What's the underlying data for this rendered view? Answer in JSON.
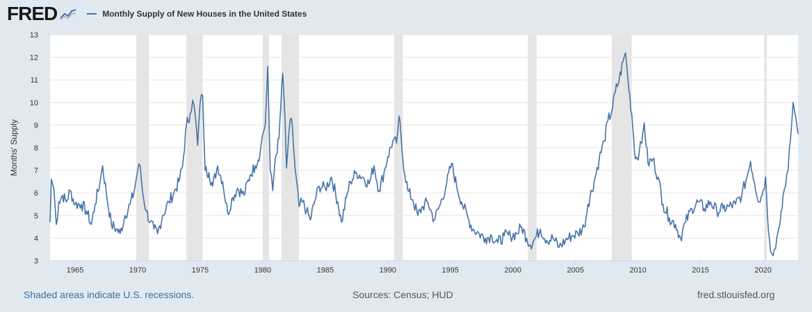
{
  "header": {
    "logo_text": "FRED",
    "logo_icon": "fred-chart-icon"
  },
  "footer": {
    "recession_note": "Shaded areas indicate U.S. recessions.",
    "sources": "Sources: Census; HUD",
    "site": "fred.stlouisfed.org"
  },
  "colors": {
    "line": "#4572a7",
    "recession": "#e5e5e5",
    "background": "#e1e9f0",
    "plot": "#ffffff"
  },
  "chart_data": {
    "type": "line",
    "title": "",
    "series": [
      {
        "name": "Monthly Supply of New Houses in the United States"
      }
    ],
    "ylabel": "Months' Supply",
    "xlabel": "",
    "ylim": [
      3,
      13
    ],
    "xlim": [
      1963.0,
      2022.8
    ],
    "yticks": [
      3,
      4,
      5,
      6,
      7,
      8,
      9,
      10,
      11,
      12,
      13
    ],
    "xticks": [
      1965,
      1970,
      1975,
      1980,
      1985,
      1990,
      1995,
      2000,
      2005,
      2010,
      2015,
      2020
    ],
    "grid": true,
    "recessions": [
      [
        1969.9,
        1970.9
      ],
      [
        1973.9,
        1975.2
      ],
      [
        1980.0,
        1980.5
      ],
      [
        1981.5,
        1982.9
      ],
      [
        1990.5,
        1991.2
      ],
      [
        2001.2,
        2001.9
      ],
      [
        2007.9,
        2009.5
      ],
      [
        2020.1,
        2020.3
      ]
    ],
    "points": [
      [
        1963.0,
        4.7
      ],
      [
        1963.1,
        6.6
      ],
      [
        1963.3,
        6.2
      ],
      [
        1963.5,
        4.6
      ],
      [
        1963.7,
        5.6
      ],
      [
        1964.0,
        5.9
      ],
      [
        1964.3,
        5.6
      ],
      [
        1964.6,
        6.1
      ],
      [
        1965.0,
        5.5
      ],
      [
        1965.5,
        5.5
      ],
      [
        1965.9,
        5.2
      ],
      [
        1966.3,
        4.6
      ],
      [
        1966.6,
        5.5
      ],
      [
        1967.0,
        6.5
      ],
      [
        1967.2,
        7.2
      ],
      [
        1967.5,
        6.0
      ],
      [
        1967.9,
        4.6
      ],
      [
        1968.3,
        4.4
      ],
      [
        1968.6,
        4.2
      ],
      [
        1969.0,
        5.0
      ],
      [
        1969.4,
        5.5
      ],
      [
        1969.7,
        6.0
      ],
      [
        1970.0,
        7.0
      ],
      [
        1970.2,
        7.2
      ],
      [
        1970.4,
        6.0
      ],
      [
        1970.7,
        5.2
      ],
      [
        1971.0,
        4.7
      ],
      [
        1971.3,
        4.4
      ],
      [
        1971.6,
        4.2
      ],
      [
        1972.0,
        5.0
      ],
      [
        1972.5,
        5.6
      ],
      [
        1972.9,
        6.0
      ],
      [
        1973.3,
        6.5
      ],
      [
        1973.6,
        7.2
      ],
      [
        1973.9,
        9.0
      ],
      [
        1974.2,
        9.5
      ],
      [
        1974.4,
        10.1
      ],
      [
        1974.6,
        9.5
      ],
      [
        1974.8,
        8.1
      ],
      [
        1975.0,
        10.0
      ],
      [
        1975.2,
        10.3
      ],
      [
        1975.4,
        7.0
      ],
      [
        1975.7,
        6.9
      ],
      [
        1976.0,
        6.3
      ],
      [
        1976.4,
        7.2
      ],
      [
        1976.8,
        6.5
      ],
      [
        1977.2,
        5.1
      ],
      [
        1977.6,
        5.8
      ],
      [
        1978.0,
        6.2
      ],
      [
        1978.5,
        5.9
      ],
      [
        1979.0,
        6.8
      ],
      [
        1979.4,
        7.2
      ],
      [
        1979.8,
        7.8
      ],
      [
        1980.0,
        8.6
      ],
      [
        1980.2,
        9.0
      ],
      [
        1980.4,
        11.6
      ],
      [
        1980.6,
        7.0
      ],
      [
        1980.8,
        6.1
      ],
      [
        1981.0,
        7.5
      ],
      [
        1981.3,
        8.4
      ],
      [
        1981.6,
        11.3
      ],
      [
        1981.8,
        9.0
      ],
      [
        1981.9,
        7.1
      ],
      [
        1982.1,
        8.7
      ],
      [
        1982.3,
        9.3
      ],
      [
        1982.6,
        7.0
      ],
      [
        1982.9,
        5.4
      ],
      [
        1983.2,
        5.6
      ],
      [
        1983.5,
        5.2
      ],
      [
        1983.8,
        4.8
      ],
      [
        1984.1,
        5.5
      ],
      [
        1984.5,
        6.3
      ],
      [
        1985.0,
        6.2
      ],
      [
        1985.5,
        6.7
      ],
      [
        1986.0,
        5.6
      ],
      [
        1986.3,
        4.7
      ],
      [
        1986.7,
        5.8
      ],
      [
        1987.0,
        6.5
      ],
      [
        1987.5,
        6.9
      ],
      [
        1988.0,
        6.7
      ],
      [
        1988.5,
        6.4
      ],
      [
        1988.9,
        7.2
      ],
      [
        1989.3,
        6.1
      ],
      [
        1989.7,
        6.9
      ],
      [
        1990.0,
        7.6
      ],
      [
        1990.4,
        8.3
      ],
      [
        1990.7,
        8.2
      ],
      [
        1990.9,
        9.4
      ],
      [
        1991.2,
        7.5
      ],
      [
        1991.6,
        6.1
      ],
      [
        1992.0,
        5.7
      ],
      [
        1992.4,
        5.0
      ],
      [
        1992.8,
        5.4
      ],
      [
        1993.2,
        5.6
      ],
      [
        1993.7,
        4.8
      ],
      [
        1994.2,
        5.5
      ],
      [
        1994.7,
        6.4
      ],
      [
        1995.1,
        7.3
      ],
      [
        1995.5,
        6.3
      ],
      [
        1995.9,
        5.6
      ],
      [
        1996.4,
        4.9
      ],
      [
        1996.8,
        4.4
      ],
      [
        1997.3,
        4.2
      ],
      [
        1997.8,
        4.0
      ],
      [
        1998.3,
        4.1
      ],
      [
        1998.8,
        3.8
      ],
      [
        1999.3,
        4.1
      ],
      [
        1999.8,
        4.1
      ],
      [
        2000.3,
        4.2
      ],
      [
        2000.7,
        4.5
      ],
      [
        2001.1,
        4.0
      ],
      [
        2001.4,
        3.7
      ],
      [
        2001.8,
        4.0
      ],
      [
        2002.2,
        4.4
      ],
      [
        2002.7,
        3.9
      ],
      [
        2003.2,
        4.0
      ],
      [
        2003.7,
        3.6
      ],
      [
        2004.2,
        3.9
      ],
      [
        2004.7,
        4.1
      ],
      [
        2005.2,
        4.2
      ],
      [
        2005.7,
        4.5
      ],
      [
        2006.0,
        5.5
      ],
      [
        2006.5,
        6.5
      ],
      [
        2006.9,
        7.5
      ],
      [
        2007.3,
        8.3
      ],
      [
        2007.6,
        9.2
      ],
      [
        2007.9,
        9.6
      ],
      [
        2008.2,
        10.5
      ],
      [
        2008.5,
        11.0
      ],
      [
        2008.8,
        11.8
      ],
      [
        2009.0,
        12.2
      ],
      [
        2009.2,
        11.0
      ],
      [
        2009.5,
        9.5
      ],
      [
        2009.8,
        7.5
      ],
      [
        2010.1,
        7.8
      ],
      [
        2010.3,
        8.2
      ],
      [
        2010.5,
        9.1
      ],
      [
        2010.8,
        7.3
      ],
      [
        2011.2,
        7.5
      ],
      [
        2011.6,
        6.7
      ],
      [
        2012.0,
        5.5
      ],
      [
        2012.5,
        4.9
      ],
      [
        2013.0,
        4.6
      ],
      [
        2013.4,
        4.0
      ],
      [
        2013.8,
        4.7
      ],
      [
        2014.3,
        5.3
      ],
      [
        2014.8,
        5.6
      ],
      [
        2015.3,
        5.3
      ],
      [
        2015.8,
        5.6
      ],
      [
        2016.3,
        5.2
      ],
      [
        2016.8,
        5.3
      ],
      [
        2017.3,
        5.4
      ],
      [
        2017.8,
        5.5
      ],
      [
        2018.3,
        5.9
      ],
      [
        2018.8,
        6.9
      ],
      [
        2019.0,
        7.4
      ],
      [
        2019.3,
        6.5
      ],
      [
        2019.7,
        5.6
      ],
      [
        2020.0,
        6.1
      ],
      [
        2020.2,
        6.7
      ],
      [
        2020.35,
        5.0
      ],
      [
        2020.5,
        4.0
      ],
      [
        2020.7,
        3.3
      ],
      [
        2020.9,
        3.5
      ],
      [
        2021.1,
        4.0
      ],
      [
        2021.3,
        4.5
      ],
      [
        2021.6,
        5.9
      ],
      [
        2021.8,
        6.3
      ],
      [
        2022.0,
        7.0
      ],
      [
        2022.2,
        8.4
      ],
      [
        2022.4,
        10.0
      ],
      [
        2022.55,
        9.5
      ],
      [
        2022.7,
        9.0
      ],
      [
        2022.8,
        8.6
      ]
    ]
  }
}
